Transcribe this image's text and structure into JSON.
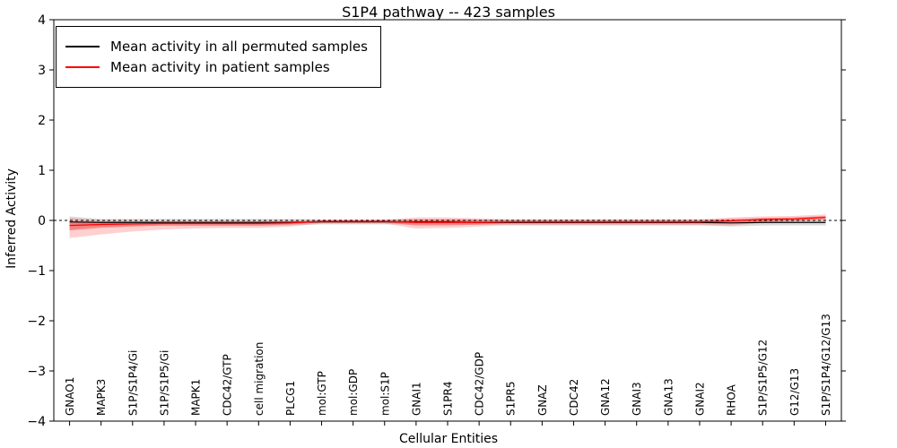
{
  "figure": {
    "title": "S1P4 pathway -- 423 samples",
    "xlabel": "Cellular Entities",
    "ylabel": "Inferred Activity"
  },
  "legend": {
    "items": [
      {
        "label": "Mean activity in all permuted samples",
        "color": "#000000"
      },
      {
        "label": "Mean activity in patient samples",
        "color": "#ff0000"
      }
    ]
  },
  "chart_data": {
    "type": "line",
    "title": "S1P4 pathway -- 423 samples",
    "xlabel": "Cellular Entities",
    "ylabel": "Inferred Activity",
    "ylim": [
      -4,
      4
    ],
    "yticks": [
      -4,
      -3,
      -2,
      -1,
      0,
      1,
      2,
      3,
      4
    ],
    "grid": false,
    "legend_position": "upper left",
    "zero_line": {
      "value": 0,
      "style": "dashed",
      "color": "#000000"
    },
    "categories": [
      "GNAO1",
      "MAPK3",
      "S1P/S1P4/Gi",
      "S1P/S1P5/Gi",
      "MAPK1",
      "CDC42/GTP",
      "cell migration",
      "PLCG1",
      "mol:GTP",
      "mol:GDP",
      "mol:S1P",
      "GNAI1",
      "S1PR4",
      "CDC42/GDP",
      "S1PR5",
      "GNAZ",
      "CDC42",
      "GNA12",
      "GNAI3",
      "GNA13",
      "GNAI2",
      "RHOA",
      "S1P/S1P5/G12",
      "G12/G13",
      "S1P/S1P4/G12/G13"
    ],
    "series": [
      {
        "name": "Mean activity in all permuted samples",
        "color": "#000000",
        "values": [
          -0.03,
          -0.04,
          -0.04,
          -0.04,
          -0.04,
          -0.04,
          -0.04,
          -0.04,
          -0.03,
          -0.03,
          -0.03,
          -0.03,
          -0.03,
          -0.04,
          -0.04,
          -0.04,
          -0.04,
          -0.04,
          -0.04,
          -0.04,
          -0.04,
          -0.05,
          -0.04,
          -0.04,
          -0.04
        ],
        "band_upper": [
          0.08,
          0.03,
          0.03,
          0.03,
          0.03,
          0.03,
          0.03,
          0.03,
          0.02,
          0.02,
          0.02,
          0.02,
          0.02,
          0.02,
          0.02,
          0.02,
          0.02,
          0.02,
          0.02,
          0.02,
          0.02,
          0.02,
          0.02,
          0.02,
          0.03
        ],
        "band_lower": [
          -0.18,
          -0.12,
          -0.11,
          -0.11,
          -0.11,
          -0.11,
          -0.11,
          -0.1,
          -0.08,
          -0.08,
          -0.08,
          -0.08,
          -0.08,
          -0.09,
          -0.1,
          -0.1,
          -0.1,
          -0.1,
          -0.1,
          -0.1,
          -0.1,
          -0.12,
          -0.1,
          -0.1,
          -0.1
        ],
        "band_color": "#999999",
        "band_opacity": 0.35
      },
      {
        "name": "Mean activity in patient samples",
        "color": "#ff0000",
        "values": [
          -0.1,
          -0.08,
          -0.07,
          -0.06,
          -0.06,
          -0.06,
          -0.06,
          -0.05,
          -0.02,
          -0.02,
          -0.02,
          -0.04,
          -0.04,
          -0.04,
          -0.03,
          -0.03,
          -0.03,
          -0.03,
          -0.03,
          -0.03,
          -0.03,
          -0.01,
          0.02,
          0.03,
          0.06
        ],
        "band_upper": [
          -0.02,
          -0.03,
          -0.03,
          -0.03,
          -0.03,
          -0.03,
          -0.03,
          -0.02,
          0.0,
          0.0,
          0.0,
          0.02,
          0.02,
          0.01,
          0.0,
          0.0,
          0.0,
          0.0,
          0.0,
          0.0,
          0.0,
          0.03,
          0.05,
          0.06,
          0.09
        ],
        "band_lower": [
          -0.2,
          -0.15,
          -0.12,
          -0.1,
          -0.1,
          -0.1,
          -0.1,
          -0.08,
          -0.04,
          -0.04,
          -0.04,
          -0.1,
          -0.1,
          -0.08,
          -0.06,
          -0.06,
          -0.06,
          -0.06,
          -0.06,
          -0.06,
          -0.06,
          -0.05,
          -0.02,
          0.0,
          0.03
        ],
        "outer_band_upper": [
          0.05,
          0.0,
          -0.01,
          -0.01,
          -0.01,
          -0.01,
          -0.01,
          0.0,
          0.01,
          0.01,
          0.01,
          0.06,
          0.06,
          0.04,
          0.02,
          0.02,
          0.02,
          0.02,
          0.02,
          0.02,
          0.02,
          0.06,
          0.08,
          0.09,
          0.12
        ],
        "outer_band_lower": [
          -0.35,
          -0.28,
          -0.22,
          -0.18,
          -0.16,
          -0.15,
          -0.15,
          -0.12,
          -0.06,
          -0.06,
          -0.06,
          -0.16,
          -0.15,
          -0.12,
          -0.09,
          -0.09,
          -0.09,
          -0.09,
          -0.09,
          -0.09,
          -0.09,
          -0.1,
          -0.05,
          -0.02,
          0.0
        ],
        "band_color": "#ff4444",
        "band_opacity": 0.45,
        "outer_band_opacity": 0.25
      }
    ]
  }
}
